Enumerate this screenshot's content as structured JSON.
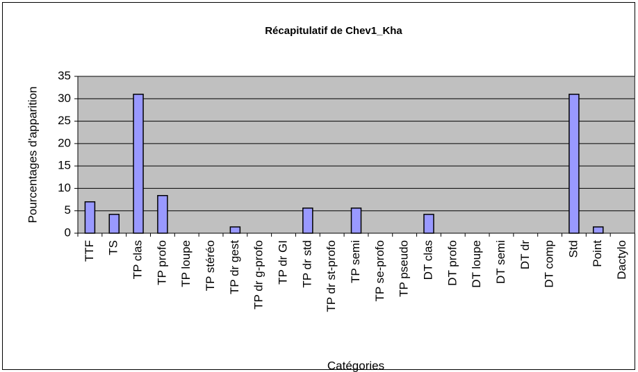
{
  "chart_data": {
    "type": "bar",
    "title": "Récapitulatif de Chev1_Kha",
    "x_label": "Catégories",
    "y_label": "Pourcentages d'apparition",
    "categories": [
      "TTF",
      "TS",
      "TP clas",
      "TP profo",
      "TP loupe",
      "TP stéréo",
      "TP dr gest",
      "TP dr g-profo",
      "TP dr GI",
      "TP dr std",
      "TP dr st-profo",
      "TP semi",
      "TP se-profo",
      "TP pseudo",
      "DT clas",
      "DT profo",
      "DT loupe",
      "DT semi",
      "DT dr",
      "DT comp",
      "Std",
      "Point",
      "Dactylo"
    ],
    "values": [
      7,
      4.2,
      31,
      8.4,
      0,
      0,
      1.4,
      0,
      0,
      5.6,
      0,
      5.6,
      0,
      0,
      4.2,
      0,
      0,
      0,
      0,
      0,
      31,
      1.4,
      0
    ],
    "color": "#9999ff",
    "ylim": [
      0,
      35
    ],
    "yticks": [
      0,
      5,
      10,
      15,
      20,
      25,
      30,
      35
    ],
    "grid": true
  }
}
